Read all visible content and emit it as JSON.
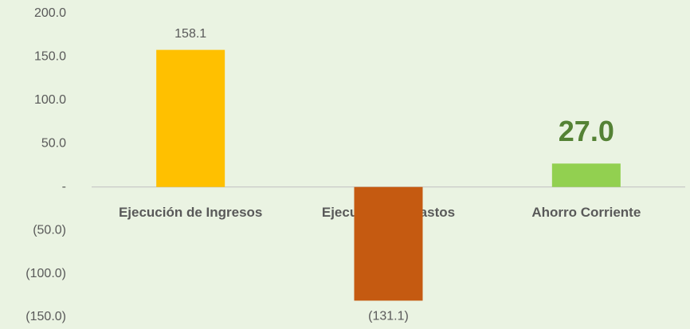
{
  "chart_data": {
    "type": "bar",
    "categories": [
      "Ejecución de Ingresos",
      "Ejecución de Gastos",
      "Ahorro Corriente"
    ],
    "values": [
      158.1,
      -131.1,
      27.0
    ],
    "value_labels": [
      "158.1",
      "(131.1)",
      "27.0"
    ],
    "colors": [
      "#ffc000",
      "#c55a11",
      "#92d050"
    ],
    "ylim": [
      -150,
      200
    ],
    "yticks": [
      {
        "value": 200,
        "label": "200.0"
      },
      {
        "value": 150,
        "label": "150.0"
      },
      {
        "value": 100,
        "label": "100.0"
      },
      {
        "value": 50,
        "label": "50.0"
      },
      {
        "value": 0,
        "label": "-"
      },
      {
        "value": -50,
        "label": "(50.0)"
      },
      {
        "value": -100,
        "label": "(100.0)"
      },
      {
        "value": -150,
        "label": "(150.0)"
      }
    ],
    "grid": false
  }
}
